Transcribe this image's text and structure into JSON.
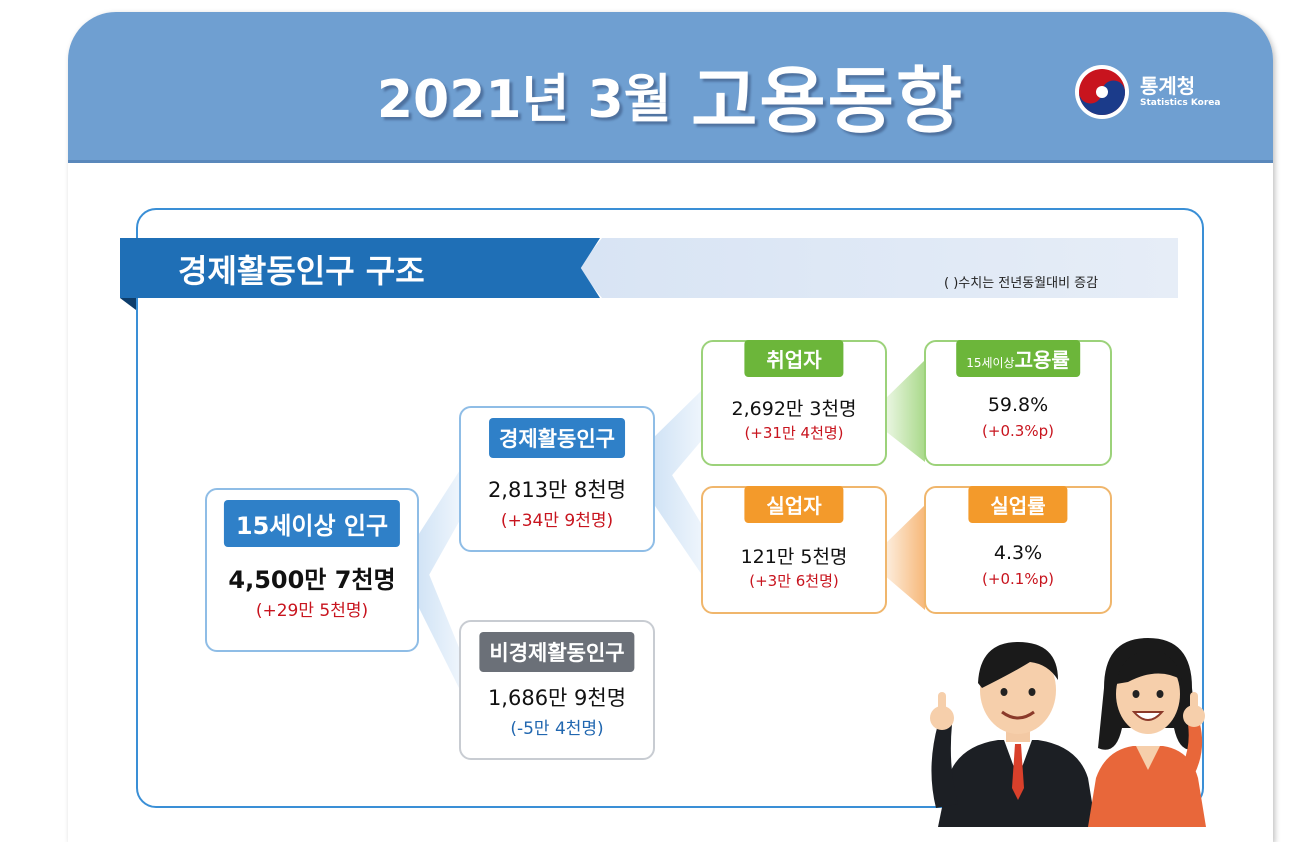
{
  "header": {
    "title_date": "2021년 3월",
    "title_main": "고용동향",
    "logo_ko": "통계청",
    "logo_en": "Statistics Korea"
  },
  "section": {
    "title": "경제활동인구 구조",
    "note": "( )수치는 전년동월대비 증감"
  },
  "nodes": {
    "population": {
      "label": "15세이상 인구",
      "value": "4,500만 7천명",
      "change": "(+29만 5천명)"
    },
    "economically_active": {
      "label": "경제활동인구",
      "value": "2,813만 8천명",
      "change": "(+34만 9천명)"
    },
    "not_economically_active": {
      "label": "비경제활동인구",
      "value": "1,686만 9천명",
      "change": "(-5만 4천명)"
    },
    "employed": {
      "label": "취업자",
      "value": "2,692만 3천명",
      "change": "(+31만 4천명)"
    },
    "employment_rate": {
      "label_prefix": "15세이상",
      "label": "고용률",
      "value": "59.8%",
      "change": "(+0.3%p)"
    },
    "unemployed": {
      "label": "실업자",
      "value": "121만 5천명",
      "change": "(+3만 6천명)"
    },
    "unemployment_rate": {
      "label": "실업률",
      "value": "4.3%",
      "change": "(+0.1%p)"
    }
  },
  "colors": {
    "header": "#6f9fd1",
    "blue": "#2f80c8",
    "gray": "#6b7078",
    "green": "#6cb63a",
    "orange": "#f39a2b",
    "increase": "#c8141e",
    "decrease": "#2167b0"
  },
  "icons": [
    "statistics-korea-logo-icon",
    "businessman-illustration",
    "businesswoman-illustration"
  ]
}
